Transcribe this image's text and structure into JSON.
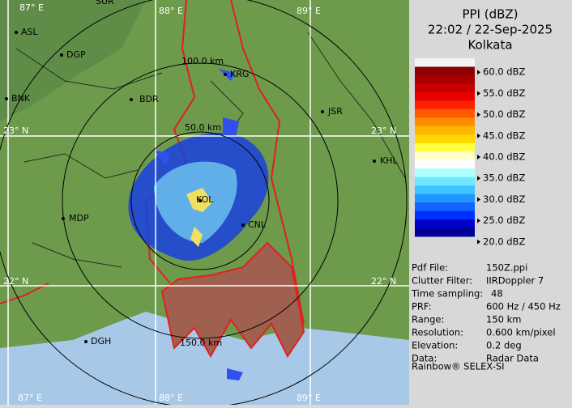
{
  "header": {
    "title": "PPI (dBZ)",
    "time": "22:02 / 22-Sep-2025",
    "station": "Kolkata"
  },
  "legend": {
    "labels": [
      "60.0 dBZ",
      "55.0 dBZ",
      "50.0 dBZ",
      "45.0 dBZ",
      "40.0 dBZ",
      "35.0 dBZ",
      "30.0 dBZ",
      "25.0 dBZ",
      "20.0 dBZ"
    ]
  },
  "info": {
    "rows": [
      [
        "Pdf File:",
        "150Z.ppi"
      ],
      [
        "Clutter Filter:",
        "IIRDoppler 7"
      ],
      [
        "Time sampling:",
        "48"
      ],
      [
        "PRF:",
        "600 Hz / 450 Hz"
      ],
      [
        "Range:",
        "150 km"
      ],
      [
        "Resolution:",
        "0.600 km/pixel"
      ],
      [
        "Elevation:",
        "0.2 deg"
      ],
      [
        "Data:",
        "Radar Data"
      ]
    ],
    "footer": "Rainbow® SELEX-SI"
  },
  "map": {
    "cities": [
      "ASL",
      "DGP",
      "BNK",
      "BDR",
      "KRG",
      "JSR",
      "KHL",
      "MDP",
      "KOL",
      "CNL",
      "DGH",
      "SUR"
    ],
    "rings": [
      "50.0 km",
      "100.0 km",
      "150.0 km"
    ],
    "lon_top": [
      "87° E",
      "88° E",
      "89° E"
    ],
    "lon_bottom": [
      "87° E",
      "88° E",
      "89° E"
    ],
    "lat_left": [
      "23° N",
      "22° N"
    ],
    "lat_right": [
      "23° N",
      "22° N"
    ]
  }
}
